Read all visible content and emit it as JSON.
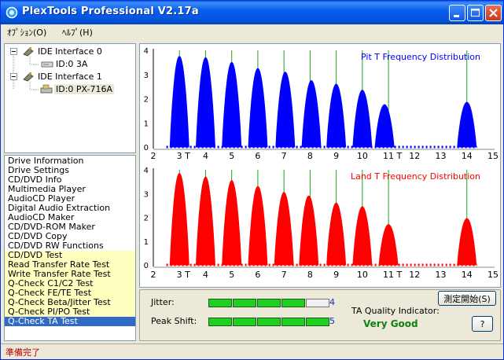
{
  "window": {
    "title": "PlexTools Professional V2.17a"
  },
  "menu": [
    {
      "label": "ｵﾌﾟｼｮﾝ(O)"
    },
    {
      "label": "ﾍﾙﾌﾟ(H)"
    }
  ],
  "tree": {
    "interfaces": [
      {
        "label": "IDE Interface 0",
        "device": "ID:0  3A",
        "selected": false
      },
      {
        "label": "IDE Interface 1",
        "device": "ID:0  PX-716A",
        "selected": true
      }
    ]
  },
  "function_list": {
    "items": [
      {
        "label": "Drive Information",
        "highlight": "none"
      },
      {
        "label": "Drive Settings",
        "highlight": "none"
      },
      {
        "label": "CD/DVD Info",
        "highlight": "none"
      },
      {
        "label": "Multimedia Player",
        "highlight": "none"
      },
      {
        "label": "AudioCD Player",
        "highlight": "none"
      },
      {
        "label": "Digital Audio Extraction",
        "highlight": "none"
      },
      {
        "label": "AudioCD Maker",
        "highlight": "none"
      },
      {
        "label": "CD/DVD-ROM Maker",
        "highlight": "none"
      },
      {
        "label": "CD/DVD Copy",
        "highlight": "none"
      },
      {
        "label": "CD/DVD RW Functions",
        "highlight": "none"
      },
      {
        "label": "CD/DVD Test",
        "highlight": "yellow"
      },
      {
        "label": "Read Transfer Rate Test",
        "highlight": "yellow"
      },
      {
        "label": "Write Transfer Rate Test",
        "highlight": "yellow"
      },
      {
        "label": "Q-Check C1/C2 Test",
        "highlight": "yellow"
      },
      {
        "label": "Q-Check FE/TE Test",
        "highlight": "yellow"
      },
      {
        "label": "Q-Check Beta/Jitter Test",
        "highlight": "yellow"
      },
      {
        "label": "Q-Check PI/PO Test",
        "highlight": "yellow"
      },
      {
        "label": "Q-Check TA Test",
        "highlight": "selected"
      }
    ]
  },
  "chart_data": [
    {
      "type": "area",
      "title": "Pit T Frequency Distribution",
      "color": "#0000ff",
      "xlim": [
        2,
        15
      ],
      "ylim": [
        0,
        4
      ],
      "x_ticks": [
        "2",
        "3 T",
        "4",
        "5",
        "6",
        "7",
        "8",
        "9",
        "10",
        "11 T",
        "12",
        "13",
        "14",
        "15"
      ],
      "y_ticks": [
        "0",
        "1",
        "2",
        "3",
        "4"
      ],
      "reference_lines": [
        3,
        4,
        5,
        6,
        7,
        8,
        9,
        10,
        11,
        14
      ],
      "peaks": [
        {
          "center": 3.0,
          "height": 3.75
        },
        {
          "center": 4.0,
          "height": 3.7
        },
        {
          "center": 5.0,
          "height": 3.5
        },
        {
          "center": 6.0,
          "height": 3.25
        },
        {
          "center": 7.05,
          "height": 3.1
        },
        {
          "center": 8.05,
          "height": 2.75
        },
        {
          "center": 9.0,
          "height": 2.6
        },
        {
          "center": 10.0,
          "height": 2.35
        },
        {
          "center": 10.85,
          "height": 1.75
        },
        {
          "center": 14.0,
          "height": 1.85
        }
      ]
    },
    {
      "type": "area",
      "title": "Land T Frequency Distribution",
      "color": "#ff0000",
      "xlim": [
        2,
        15
      ],
      "ylim": [
        0,
        4
      ],
      "x_ticks": [
        "2",
        "3 T",
        "4",
        "5",
        "6",
        "7",
        "8",
        "9",
        "10",
        "11 T",
        "12",
        "13",
        "14",
        "15"
      ],
      "y_ticks": [
        "0",
        "1",
        "2",
        "3",
        "4"
      ],
      "reference_lines": [
        3,
        4,
        5,
        6,
        7,
        8,
        9,
        10,
        11,
        14
      ],
      "peaks": [
        {
          "center": 3.0,
          "height": 3.85
        },
        {
          "center": 4.0,
          "height": 3.7
        },
        {
          "center": 5.0,
          "height": 3.55
        },
        {
          "center": 6.0,
          "height": 3.3
        },
        {
          "center": 7.0,
          "height": 3.05
        },
        {
          "center": 7.95,
          "height": 2.9
        },
        {
          "center": 9.0,
          "height": 2.6
        },
        {
          "center": 10.0,
          "height": 2.45
        },
        {
          "center": 11.0,
          "height": 1.7
        },
        {
          "center": 14.0,
          "height": 1.95
        }
      ]
    }
  ],
  "metrics": {
    "jitter": {
      "label": "Jitter:",
      "value": "4",
      "level": 4,
      "max": 5
    },
    "peak_shift": {
      "label": "Peak Shift:",
      "value": "5",
      "level": 5,
      "max": 5
    }
  },
  "quality": {
    "label": "TA Quality Indicator:",
    "value": "Very Good",
    "color": "#108010"
  },
  "buttons": {
    "start": "測定開始(S)",
    "help": "?"
  },
  "status": {
    "text": "準備完了"
  }
}
